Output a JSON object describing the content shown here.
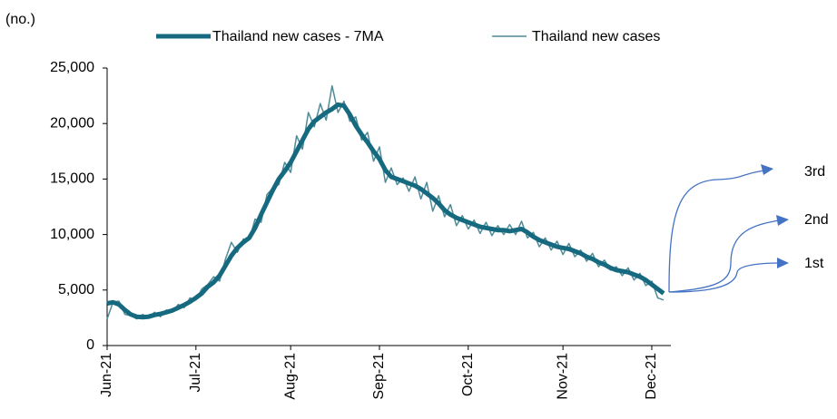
{
  "chart_data": {
    "type": "line",
    "y_label": "(no.)",
    "categories": [
      "Jun-21",
      null,
      null,
      null,
      null,
      null,
      null,
      null,
      null,
      null,
      null,
      null,
      null,
      null,
      null,
      "Jul-21",
      null,
      null,
      null,
      null,
      null,
      null,
      null,
      null,
      null,
      null,
      null,
      null,
      null,
      null,
      null,
      "Aug-21",
      null,
      null,
      null,
      null,
      null,
      null,
      null,
      null,
      null,
      null,
      null,
      null,
      null,
      null,
      "Sep-21",
      null,
      null,
      null,
      null,
      null,
      null,
      null,
      null,
      null,
      null,
      null,
      null,
      null,
      null,
      "Oct-21",
      null,
      null,
      null,
      null,
      null,
      null,
      null,
      null,
      null,
      null,
      null,
      null,
      null,
      null,
      null,
      "Nov-21",
      null,
      null,
      null,
      null,
      null,
      null,
      null,
      null,
      null,
      null,
      null,
      null,
      null,
      null,
      "Dec-21",
      null,
      null
    ],
    "series": [
      {
        "name": "Thailand new cases - 7MA",
        "color": "#166a80",
        "width": 5,
        "values": [
          3800,
          3900,
          3700,
          3200,
          2800,
          2600,
          2550,
          2600,
          2750,
          2850,
          3000,
          3150,
          3400,
          3650,
          3950,
          4300,
          4700,
          5300,
          5700,
          6300,
          7200,
          8100,
          8800,
          9300,
          9700,
          10600,
          11800,
          12900,
          14000,
          15000,
          15700,
          16500,
          17500,
          18500,
          19500,
          20200,
          20600,
          21000,
          21300,
          21700,
          21600,
          20800,
          19800,
          19000,
          18300,
          17500,
          16800,
          15800,
          15200,
          15000,
          14800,
          14600,
          14400,
          14100,
          13700,
          13300,
          12800,
          12200,
          11800,
          11500,
          11300,
          11100,
          10900,
          10700,
          10600,
          10500,
          10400,
          10400,
          10300,
          10400,
          10500,
          10200,
          9800,
          9500,
          9300,
          9100,
          8900,
          8800,
          8700,
          8500,
          8300,
          8000,
          7800,
          7500,
          7300,
          7000,
          6800,
          6700,
          6600,
          6400,
          6200,
          5900,
          5500,
          5100,
          4700
        ]
      },
      {
        "name": "Thailand new cases",
        "color": "#4f8a97",
        "width": 1.5,
        "values": [
          2400,
          3900,
          4000,
          2800,
          2700,
          2400,
          2800,
          2500,
          3000,
          2600,
          3200,
          3000,
          3700,
          3400,
          4300,
          4100,
          5100,
          5500,
          6200,
          5800,
          7800,
          9300,
          8400,
          9600,
          9500,
          11400,
          11100,
          13600,
          14200,
          14500,
          16500,
          15600,
          18900,
          17700,
          21000,
          19700,
          21800,
          20300,
          23400,
          21000,
          22000,
          20200,
          20600,
          18500,
          19200,
          16600,
          17900,
          14700,
          16000,
          14500,
          15100,
          13900,
          15200,
          13200,
          14700,
          12100,
          13500,
          11600,
          12700,
          10800,
          11700,
          10500,
          11300,
          10100,
          11100,
          9900,
          10800,
          10000,
          10900,
          10000,
          11200,
          9700,
          10200,
          8900,
          9700,
          8600,
          9400,
          8200,
          9200,
          8000,
          8600,
          7600,
          8300,
          7100,
          7700,
          6800,
          7100,
          6300,
          7000,
          5900,
          6500,
          5400,
          5800,
          4300,
          4100
        ]
      }
    ],
    "ylim": [
      0,
      25000
    ],
    "yticks": [
      0,
      {
        "value": 5000,
        "label": "5,000"
      },
      {
        "value": 10000,
        "label": "10,000"
      },
      {
        "value": 15000,
        "label": "15,000"
      },
      {
        "value": 20000,
        "label": "20,000"
      },
      {
        "value": 25000,
        "label": "25,000"
      }
    ],
    "annotations": [
      "3rd",
      "2nd",
      "1st"
    ]
  }
}
